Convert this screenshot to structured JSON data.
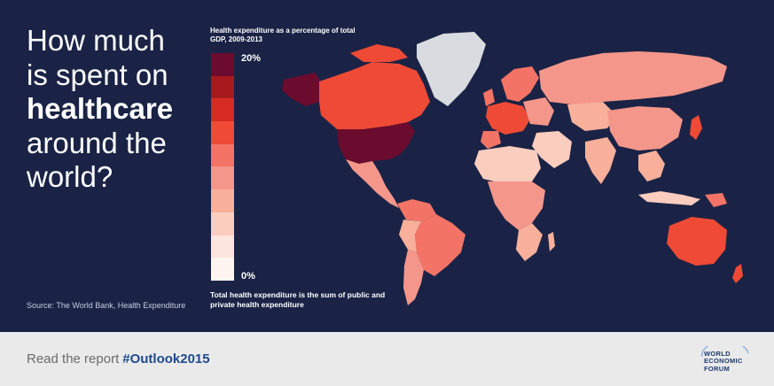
{
  "headline": {
    "line1": "How much",
    "line2": "is spent on",
    "line3": "healthcare",
    "line4": "around the",
    "line5": "world?"
  },
  "source": "Source: The World Bank, Health Expenditure",
  "legend": {
    "title": "Health expenditure as a percentage of total GDP, 2009-2013",
    "max_label": "20%",
    "min_label": "0%",
    "colors": [
      "#6b0b2e",
      "#a61a1d",
      "#d62a23",
      "#ef4a36",
      "#f37466",
      "#f5968b",
      "#f8b09a",
      "#fbcdbf",
      "#fde6de",
      "#fef4f0"
    ],
    "no_data_color": "#d8dbe0"
  },
  "note": "Total health expenditure is the sum of public and private health expenditure",
  "footer": {
    "cta_text": "Read the report",
    "hashtag": "#Outlook2015",
    "logo": {
      "line1": "WORLD",
      "line2": "ECONOMIC",
      "line3": "FORUM"
    }
  },
  "colors": {
    "background": "#1a2345",
    "footer_bg": "#eaeaea",
    "hashtag": "#1e4a8c"
  }
}
